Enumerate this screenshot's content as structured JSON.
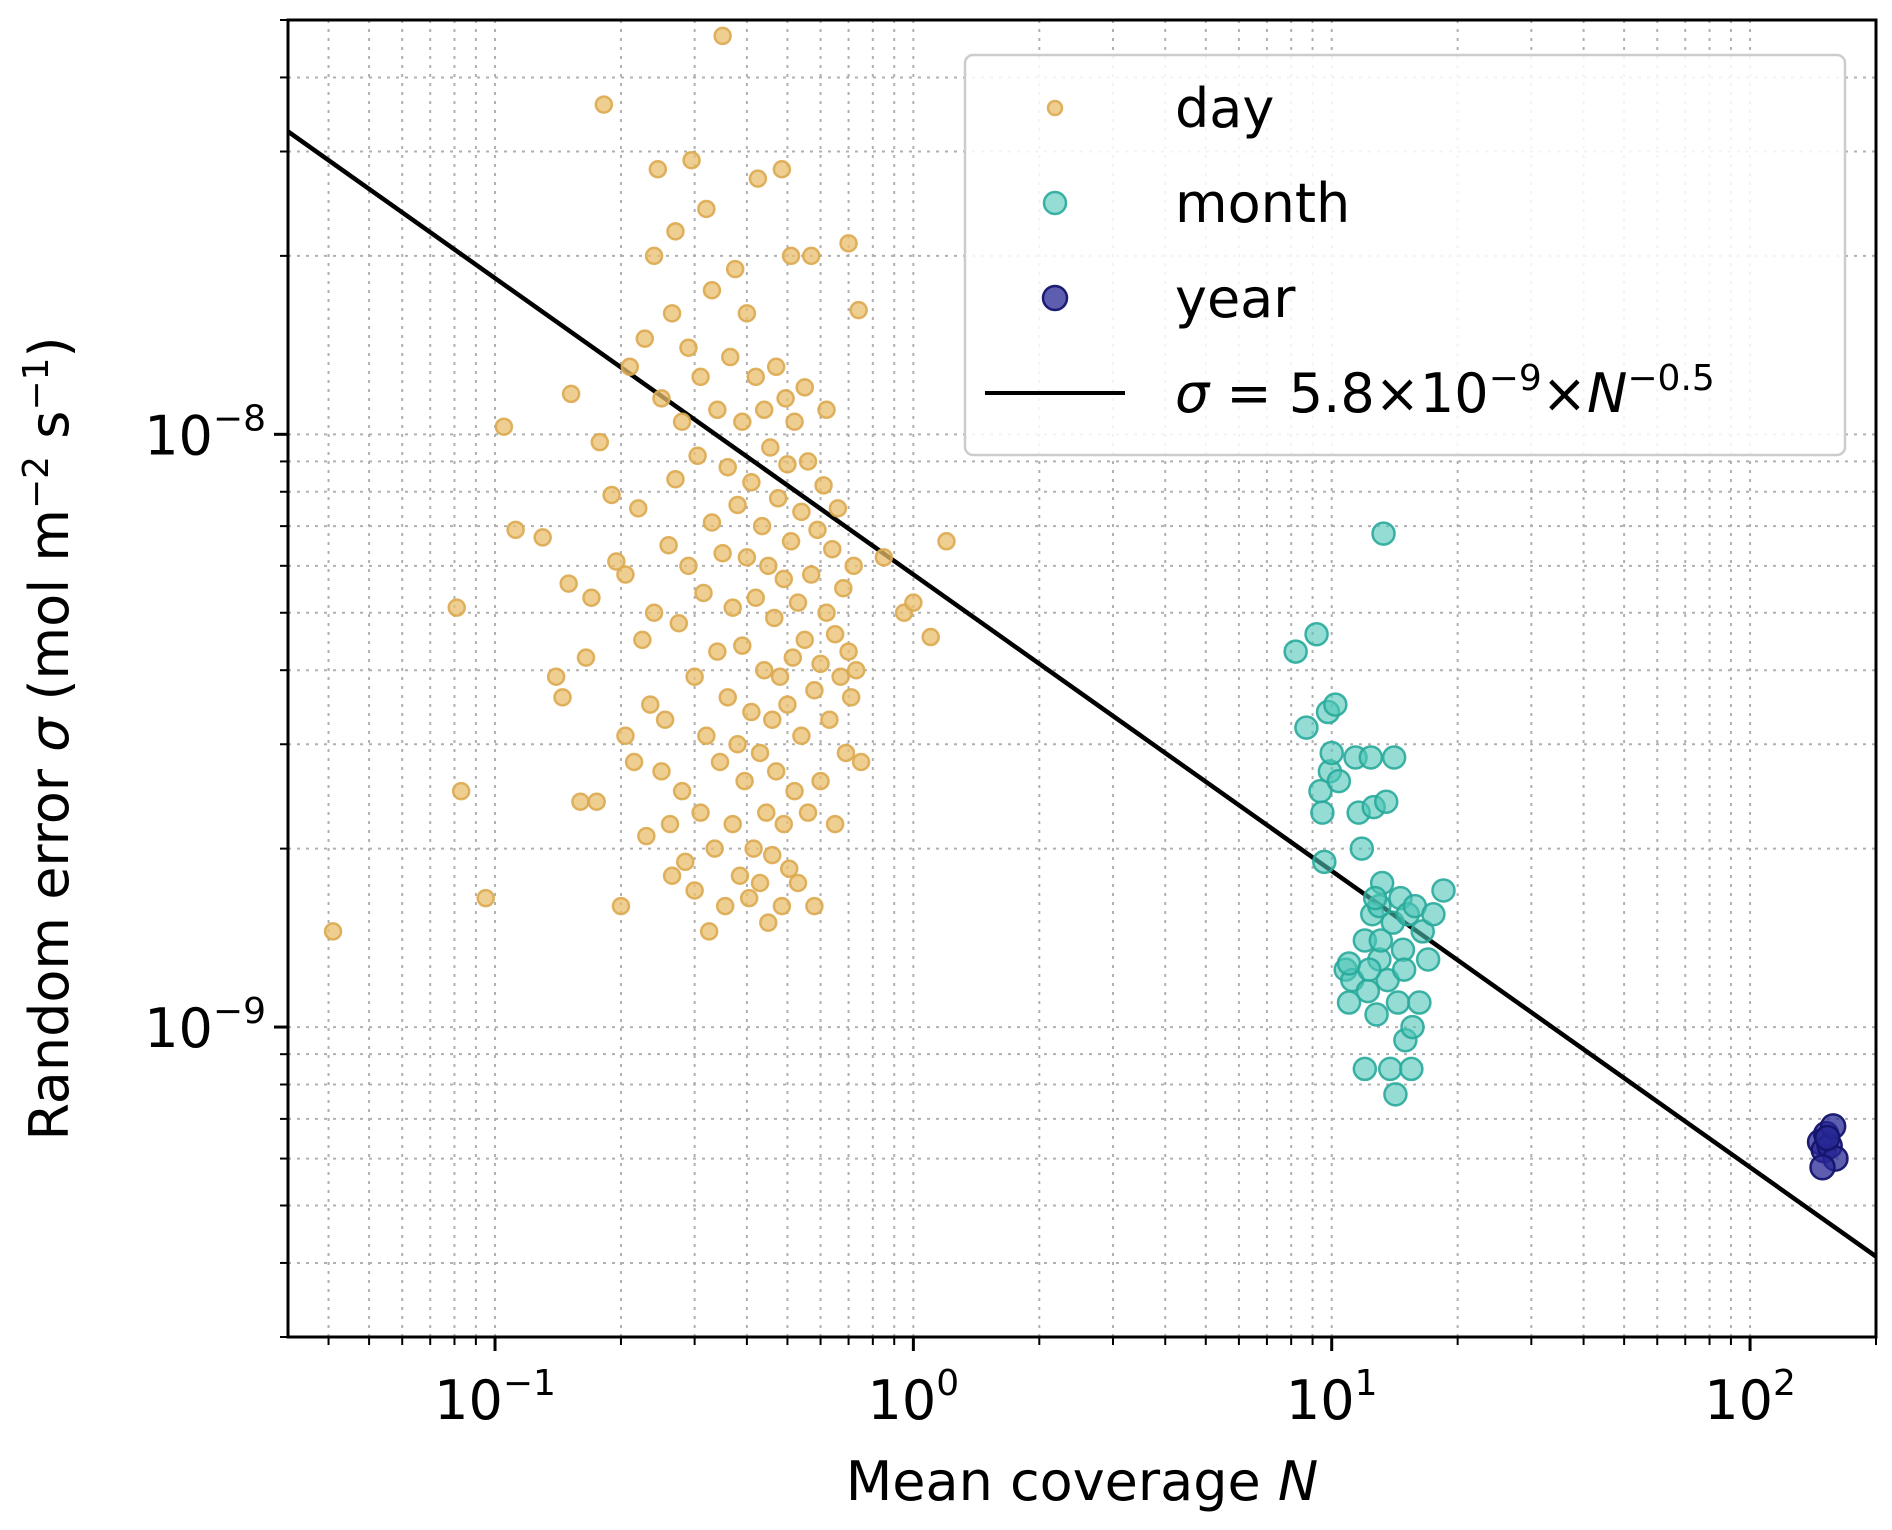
{
  "chart_data": {
    "type": "scatter",
    "title": "",
    "xlabel_prefix": "Mean coverage ",
    "xlabel_var": "N",
    "ylabel_prefix": "Random error ",
    "ylabel_var": "σ",
    "ylabel_units_open": " (mol m",
    "ylabel_exp1": "−2",
    "ylabel_mid": " s",
    "ylabel_exp2": "−1",
    "ylabel_close": ")",
    "x_scale": "log",
    "y_scale": "log",
    "xlim": [
      0.032,
      200
    ],
    "ylim": [
      3e-10,
      5e-08
    ],
    "grid": true,
    "legend_position": "top-right",
    "x_ticks": [
      {
        "value": 0.1,
        "base": "10",
        "exp": "−1"
      },
      {
        "value": 1,
        "base": "10",
        "exp": "0"
      },
      {
        "value": 10,
        "base": "10",
        "exp": "1"
      },
      {
        "value": 100,
        "base": "10",
        "exp": "2"
      }
    ],
    "y_ticks": [
      {
        "value": 1e-09,
        "base": "10",
        "exp": "−9"
      },
      {
        "value": 1e-08,
        "base": "10",
        "exp": "−8"
      }
    ],
    "fit_line": {
      "name_var": "σ",
      "name_eq": " = 5.8×10",
      "name_exp1": "−9",
      "name_mult": "×",
      "name_var2": "N",
      "name_exp2": "−0.5",
      "coefficient": 5.8e-09,
      "exponent": -0.5,
      "color": "#000000"
    },
    "series": [
      {
        "name": "day",
        "color": "#e9bd6e",
        "points": [
          [
            0.041,
            1.45e-09
          ],
          [
            0.081,
            5.1e-09
          ],
          [
            0.083,
            2.5e-09
          ],
          [
            0.095,
            1.65e-09
          ],
          [
            0.105,
            1.03e-08
          ],
          [
            0.112,
            6.9e-09
          ],
          [
            0.13,
            6.7e-09
          ],
          [
            0.14,
            3.9e-09
          ],
          [
            0.145,
            3.6e-09
          ],
          [
            0.15,
            5.6e-09
          ],
          [
            0.152,
            1.17e-08
          ],
          [
            0.16,
            2.4e-09
          ],
          [
            0.165,
            4.2e-09
          ],
          [
            0.17,
            5.3e-09
          ],
          [
            0.175,
            2.4e-09
          ],
          [
            0.178,
            9.7e-09
          ],
          [
            0.182,
            3.6e-08
          ],
          [
            0.19,
            7.9e-09
          ],
          [
            0.195,
            6.1e-09
          ],
          [
            0.2,
            1.6e-09
          ],
          [
            0.205,
            3.1e-09
          ],
          [
            0.205,
            5.8e-09
          ],
          [
            0.21,
            1.3e-08
          ],
          [
            0.215,
            2.8e-09
          ],
          [
            0.22,
            7.5e-09
          ],
          [
            0.225,
            4.5e-09
          ],
          [
            0.228,
            1.45e-08
          ],
          [
            0.23,
            2.1e-09
          ],
          [
            0.235,
            3.5e-09
          ],
          [
            0.24,
            2e-08
          ],
          [
            0.24,
            5e-09
          ],
          [
            0.245,
            2.8e-08
          ],
          [
            0.25,
            1.15e-08
          ],
          [
            0.25,
            2.7e-09
          ],
          [
            0.255,
            3.3e-09
          ],
          [
            0.26,
            6.5e-09
          ],
          [
            0.262,
            2.2e-09
          ],
          [
            0.265,
            1.8e-09
          ],
          [
            0.265,
            1.6e-08
          ],
          [
            0.27,
            2.2e-08
          ],
          [
            0.27,
            8.4e-09
          ],
          [
            0.275,
            4.8e-09
          ],
          [
            0.28,
            1.05e-08
          ],
          [
            0.28,
            2.5e-09
          ],
          [
            0.285,
            1.9e-09
          ],
          [
            0.29,
            1.4e-08
          ],
          [
            0.29,
            6e-09
          ],
          [
            0.295,
            2.9e-08
          ],
          [
            0.3,
            3.9e-09
          ],
          [
            0.3,
            1.7e-09
          ],
          [
            0.305,
            9.2e-09
          ],
          [
            0.31,
            2.3e-09
          ],
          [
            0.31,
            1.25e-08
          ],
          [
            0.315,
            5.4e-09
          ],
          [
            0.32,
            2.4e-08
          ],
          [
            0.32,
            3.1e-09
          ],
          [
            0.325,
            1.45e-09
          ],
          [
            0.33,
            7.1e-09
          ],
          [
            0.33,
            1.75e-08
          ],
          [
            0.335,
            2e-09
          ],
          [
            0.34,
            4.3e-09
          ],
          [
            0.34,
            1.1e-08
          ],
          [
            0.345,
            2.8e-09
          ],
          [
            0.35,
            4.7e-08
          ],
          [
            0.35,
            6.3e-09
          ],
          [
            0.355,
            1.6e-09
          ],
          [
            0.36,
            8.8e-09
          ],
          [
            0.36,
            3.6e-09
          ],
          [
            0.365,
            1.35e-08
          ],
          [
            0.37,
            2.2e-09
          ],
          [
            0.37,
            5.1e-09
          ],
          [
            0.375,
            1.9e-08
          ],
          [
            0.38,
            7.6e-09
          ],
          [
            0.38,
            3e-09
          ],
          [
            0.385,
            1.8e-09
          ],
          [
            0.39,
            1.05e-08
          ],
          [
            0.39,
            4.4e-09
          ],
          [
            0.395,
            2.6e-09
          ],
          [
            0.4,
            6.2e-09
          ],
          [
            0.4,
            1.6e-08
          ],
          [
            0.405,
            1.65e-09
          ],
          [
            0.41,
            3.4e-09
          ],
          [
            0.41,
            8.3e-09
          ],
          [
            0.415,
            2e-09
          ],
          [
            0.42,
            1.25e-08
          ],
          [
            0.42,
            5.3e-09
          ],
          [
            0.425,
            2.7e-08
          ],
          [
            0.43,
            2.9e-09
          ],
          [
            0.43,
            1.75e-09
          ],
          [
            0.435,
            7e-09
          ],
          [
            0.44,
            4e-09
          ],
          [
            0.44,
            1.1e-08
          ],
          [
            0.445,
            2.3e-09
          ],
          [
            0.45,
            6e-09
          ],
          [
            0.45,
            1.5e-09
          ],
          [
            0.455,
            9.5e-09
          ],
          [
            0.46,
            3.3e-09
          ],
          [
            0.46,
            1.95e-09
          ],
          [
            0.465,
            4.9e-09
          ],
          [
            0.47,
            1.3e-08
          ],
          [
            0.47,
            2.7e-09
          ],
          [
            0.475,
            7.8e-09
          ],
          [
            0.48,
            3.9e-09
          ],
          [
            0.485,
            2.8e-08
          ],
          [
            0.485,
            1.6e-09
          ],
          [
            0.49,
            5.7e-09
          ],
          [
            0.49,
            2.2e-09
          ],
          [
            0.495,
            1.15e-08
          ],
          [
            0.5,
            3.5e-09
          ],
          [
            0.5,
            8.9e-09
          ],
          [
            0.505,
            1.85e-09
          ],
          [
            0.51,
            6.6e-09
          ],
          [
            0.51,
            2e-08
          ],
          [
            0.515,
            4.2e-09
          ],
          [
            0.52,
            2.5e-09
          ],
          [
            0.52,
            1.05e-08
          ],
          [
            0.53,
            5.2e-09
          ],
          [
            0.53,
            1.75e-09
          ],
          [
            0.54,
            7.4e-09
          ],
          [
            0.54,
            3.1e-09
          ],
          [
            0.55,
            1.2e-08
          ],
          [
            0.55,
            4.5e-09
          ],
          [
            0.56,
            2.3e-09
          ],
          [
            0.56,
            9e-09
          ],
          [
            0.57,
            5.8e-09
          ],
          [
            0.57,
            2e-08
          ],
          [
            0.58,
            3.7e-09
          ],
          [
            0.58,
            1.6e-09
          ],
          [
            0.59,
            6.9e-09
          ],
          [
            0.6,
            4.1e-09
          ],
          [
            0.6,
            2.6e-09
          ],
          [
            0.61,
            8.2e-09
          ],
          [
            0.62,
            5e-09
          ],
          [
            0.62,
            1.1e-08
          ],
          [
            0.63,
            3.3e-09
          ],
          [
            0.64,
            6.4e-09
          ],
          [
            0.65,
            2.2e-09
          ],
          [
            0.65,
            4.6e-09
          ],
          [
            0.66,
            7.5e-09
          ],
          [
            0.67,
            3.9e-09
          ],
          [
            0.68,
            5.5e-09
          ],
          [
            0.69,
            2.9e-09
          ],
          [
            0.7,
            4.3e-09
          ],
          [
            0.7,
            2.1e-08
          ],
          [
            0.71,
            3.6e-09
          ],
          [
            0.72,
            6e-09
          ],
          [
            0.73,
            4e-09
          ],
          [
            0.74,
            1.62e-08
          ],
          [
            0.75,
            2.8e-09
          ],
          [
            0.85,
            6.2e-09
          ],
          [
            0.95,
            5e-09
          ],
          [
            1.1,
            4.55e-09
          ],
          [
            1.0,
            5.2e-09
          ],
          [
            1.2,
            6.6e-09
          ]
        ]
      },
      {
        "name": "month",
        "color": "#4ec7b8",
        "points": [
          [
            8.2,
            4.3e-09
          ],
          [
            8.7,
            3.2e-09
          ],
          [
            9.2,
            4.6e-09
          ],
          [
            9.4,
            2.5e-09
          ],
          [
            9.5,
            2.3e-09
          ],
          [
            9.6,
            1.9e-09
          ],
          [
            9.8,
            3.4e-09
          ],
          [
            9.9,
            2.7e-09
          ],
          [
            10.0,
            2.9e-09
          ],
          [
            10.2,
            3.5e-09
          ],
          [
            10.4,
            2.6e-09
          ],
          [
            10.8,
            1.25e-09
          ],
          [
            11.0,
            1.1e-09
          ],
          [
            11.2,
            1.2e-09
          ],
          [
            11.4,
            2.85e-09
          ],
          [
            11.6,
            2.3e-09
          ],
          [
            11.8,
            2e-09
          ],
          [
            12.0,
            1.4e-09
          ],
          [
            12.0,
            8.5e-10
          ],
          [
            12.2,
            1.15e-09
          ],
          [
            12.4,
            2.85e-09
          ],
          [
            12.5,
            1.55e-09
          ],
          [
            12.6,
            2.35e-09
          ],
          [
            12.8,
            1.05e-09
          ],
          [
            13.0,
            1.3e-09
          ],
          [
            13.0,
            1.6e-09
          ],
          [
            13.2,
            1.75e-09
          ],
          [
            13.3,
            6.8e-09
          ],
          [
            13.5,
            2.4e-09
          ],
          [
            13.6,
            1.2e-09
          ],
          [
            13.8,
            8.5e-10
          ],
          [
            14.0,
            1.5e-09
          ],
          [
            14.1,
            2.85e-09
          ],
          [
            14.2,
            7.7e-10
          ],
          [
            14.4,
            1.1e-09
          ],
          [
            14.6,
            1.65e-09
          ],
          [
            14.8,
            1.35e-09
          ],
          [
            15.0,
            9.5e-10
          ],
          [
            15.2,
            1.55e-09
          ],
          [
            15.5,
            8.5e-10
          ],
          [
            15.6,
            1e-09
          ],
          [
            15.8,
            1.6e-09
          ],
          [
            16.2,
            1.1e-09
          ],
          [
            16.5,
            1.45e-09
          ],
          [
            17.0,
            1.3e-09
          ],
          [
            17.5,
            1.55e-09
          ],
          [
            18.5,
            1.7e-09
          ],
          [
            11.0,
            1.28e-09
          ],
          [
            12.3,
            1.25e-09
          ],
          [
            13.1,
            1.4e-09
          ],
          [
            14.9,
            1.25e-09
          ],
          [
            12.7,
            1.65e-09
          ]
        ]
      },
      {
        "name": "year",
        "color": "#1f1f8c",
        "points": [
          [
            147,
            6.4e-10
          ],
          [
            150,
            6.2e-10
          ],
          [
            152,
            6.6e-10
          ],
          [
            155,
            6.3e-10
          ],
          [
            158,
            6.8e-10
          ],
          [
            160,
            6e-10
          ],
          [
            149,
            5.8e-10
          ],
          [
            153,
            6.5e-10
          ]
        ]
      }
    ]
  }
}
